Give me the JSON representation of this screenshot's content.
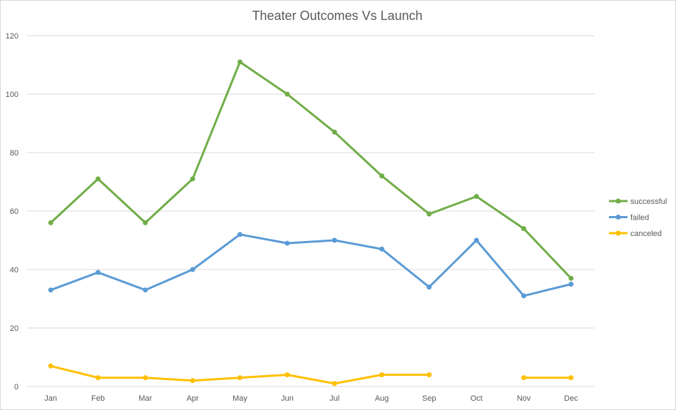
{
  "chart_data": {
    "type": "line",
    "title": "Theater Outcomes Vs Launch",
    "xlabel": "",
    "ylabel": "",
    "categories": [
      "Jan",
      "Feb",
      "Mar",
      "Apr",
      "May",
      "Jun",
      "Jul",
      "Aug",
      "Sep",
      "Oct",
      "Nov",
      "Dec"
    ],
    "ylim": [
      0,
      120
    ],
    "yticks": [
      0,
      20,
      40,
      60,
      80,
      100,
      120
    ],
    "grid": true,
    "legend_position": "right",
    "series": [
      {
        "name": "successful",
        "color": "#70ad47",
        "values": [
          56,
          71,
          56,
          71,
          111,
          100,
          87,
          72,
          59,
          65,
          54,
          37
        ]
      },
      {
        "name": "failed",
        "color": "#5b9bd5",
        "values": [
          33,
          39,
          33,
          40,
          52,
          49,
          50,
          47,
          34,
          50,
          31,
          35
        ]
      },
      {
        "name": "canceled",
        "color": "#ffc000",
        "values": [
          7,
          3,
          3,
          2,
          3,
          4,
          1,
          4,
          4,
          null,
          3,
          3
        ]
      }
    ]
  }
}
